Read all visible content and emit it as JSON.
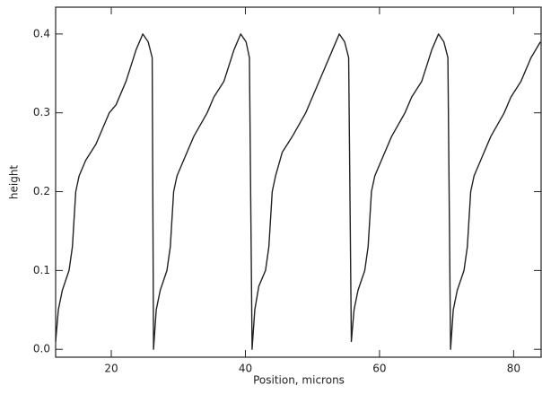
{
  "chart_data": {
    "type": "line",
    "xlabel": "Position, microns",
    "ylabel": "height",
    "x": [
      11.7,
      12.1,
      12.7,
      13.7,
      14.2,
      14.7,
      15.2,
      16.2,
      17.7,
      19.7,
      20.7,
      22.2,
      23.7,
      24.7,
      25.5,
      26.1,
      26.3,
      26.7,
      27.3,
      28.3,
      28.8,
      29.3,
      29.8,
      30.8,
      32.3,
      34.3,
      35.3,
      36.8,
      38.3,
      39.3,
      40.1,
      40.6,
      41.0,
      41.4,
      42.0,
      43.0,
      43.5,
      44.0,
      44.5,
      45.5,
      47.0,
      49.0,
      50.0,
      51.5,
      53.0,
      54.0,
      54.8,
      55.4,
      55.8,
      56.2,
      56.8,
      57.8,
      58.3,
      58.8,
      59.3,
      60.3,
      61.8,
      63.8,
      64.8,
      66.3,
      67.8,
      68.8,
      69.6,
      70.2,
      70.6,
      71.0,
      71.6,
      72.6,
      73.1,
      73.6,
      74.1,
      75.1,
      76.6,
      78.6,
      79.6,
      81.1,
      82.6,
      84.0
    ],
    "series": [
      {
        "name": "height",
        "color": "#222222",
        "values": [
          0.01,
          0.05,
          0.075,
          0.1,
          0.13,
          0.2,
          0.22,
          0.24,
          0.26,
          0.3,
          0.31,
          0.34,
          0.38,
          0.4,
          0.39,
          0.37,
          0.0,
          0.05,
          0.075,
          0.1,
          0.13,
          0.2,
          0.22,
          0.24,
          0.27,
          0.3,
          0.32,
          0.34,
          0.38,
          0.4,
          0.39,
          0.37,
          0.0,
          0.05,
          0.08,
          0.1,
          0.13,
          0.2,
          0.22,
          0.25,
          0.27,
          0.3,
          0.32,
          0.35,
          0.38,
          0.4,
          0.39,
          0.37,
          0.01,
          0.05,
          0.075,
          0.1,
          0.13,
          0.2,
          0.22,
          0.24,
          0.27,
          0.3,
          0.32,
          0.34,
          0.38,
          0.4,
          0.39,
          0.37,
          0.0,
          0.05,
          0.075,
          0.1,
          0.13,
          0.2,
          0.22,
          0.24,
          0.27,
          0.3,
          0.32,
          0.34,
          0.37,
          0.39
        ]
      }
    ],
    "xlim": [
      11.7,
      84.1
    ],
    "ylim": [
      -0.01,
      0.434
    ],
    "xticks": [
      20,
      40,
      60,
      80
    ],
    "yticks": [
      {
        "value": 0,
        "label": "0.0"
      },
      0.1,
      0.2,
      0.3,
      0.4
    ]
  }
}
